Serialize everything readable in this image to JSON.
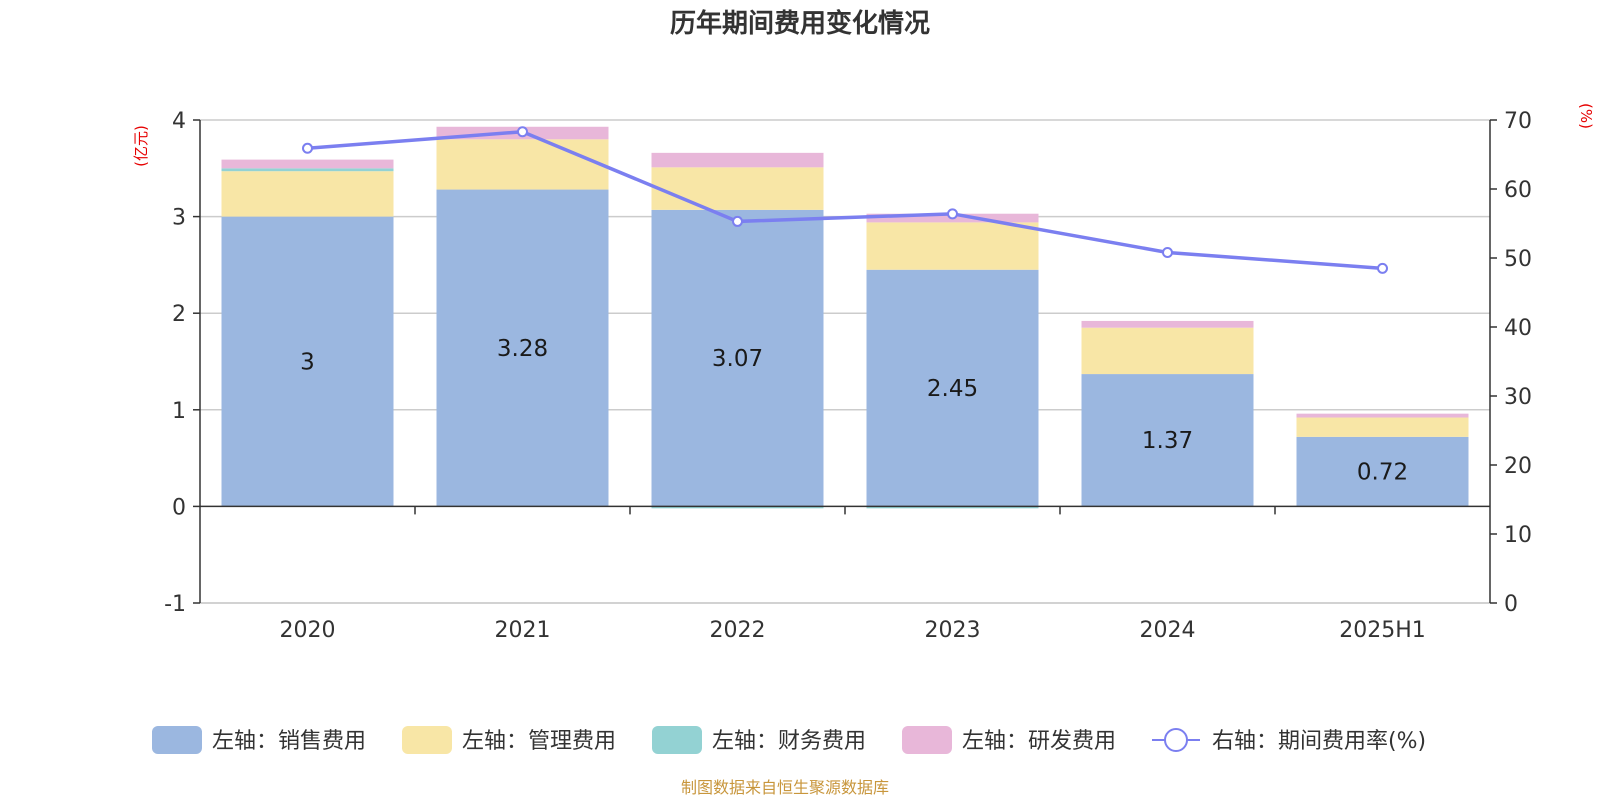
{
  "chart_data": {
    "type": "bar",
    "title": "历年期间费用变化情况",
    "categories": [
      "2020",
      "2021",
      "2022",
      "2023",
      "2024",
      "2025H1"
    ],
    "left_axis": {
      "unit": "(亿元)",
      "ylim": [
        -1,
        4
      ],
      "ticks": [
        "-1",
        "0",
        "1",
        "2",
        "3",
        "4"
      ]
    },
    "right_axis": {
      "unit": "(%)",
      "ylim": [
        0,
        70
      ],
      "ticks": [
        "0",
        "10",
        "20",
        "30",
        "40",
        "50",
        "60",
        "70"
      ]
    },
    "series": [
      {
        "name": "左轴：销售费用",
        "kind": "bar",
        "axis": "left",
        "color": "#9bb7e0",
        "values": [
          3.0,
          3.28,
          3.07,
          2.45,
          1.37,
          0.72
        ],
        "labels": [
          "3",
          "3.28",
          "3.07",
          "2.45",
          "1.37",
          "0.72"
        ]
      },
      {
        "name": "左轴：管理费用",
        "kind": "bar",
        "axis": "left",
        "color": "#f8e6a6",
        "values": [
          0.47,
          0.52,
          0.44,
          0.49,
          0.48,
          0.2
        ]
      },
      {
        "name": "左轴：财务费用",
        "kind": "bar",
        "axis": "left",
        "color": "#93d2d3",
        "values": [
          0.03,
          0.0,
          -0.02,
          -0.02,
          0.0,
          0.0
        ]
      },
      {
        "name": "左轴：研发费用",
        "kind": "bar",
        "axis": "left",
        "color": "#e8b7d9",
        "values": [
          0.09,
          0.13,
          0.15,
          0.09,
          0.07,
          0.04
        ]
      },
      {
        "name": "右轴：期间费用率(%)",
        "kind": "line",
        "axis": "right",
        "color": "#7b7ff0",
        "values": [
          65.9,
          68.3,
          55.3,
          56.4,
          50.8,
          48.5
        ]
      }
    ],
    "grid": true,
    "legend": "bottom"
  },
  "source": "制图数据来自恒生聚源数据库"
}
